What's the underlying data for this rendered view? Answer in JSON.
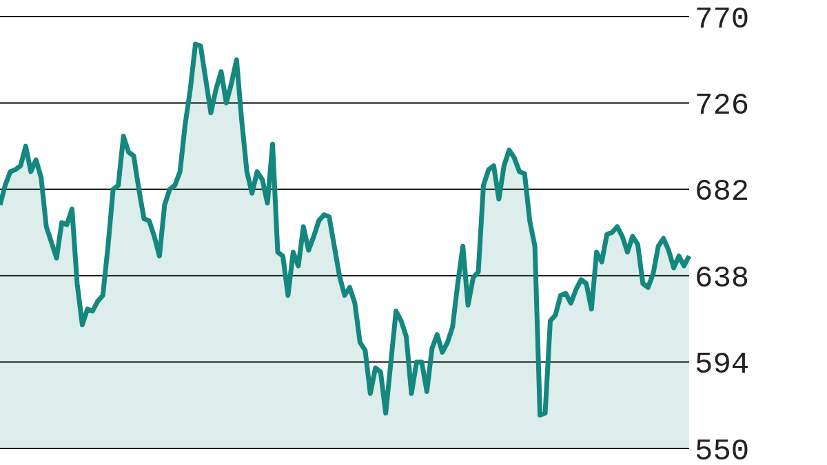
{
  "chart_data": {
    "type": "area",
    "categories": [
      null,
      null,
      null,
      null,
      null,
      null,
      null,
      null,
      null,
      null,
      null,
      null,
      null,
      null,
      null,
      null,
      null,
      null,
      null,
      null,
      null,
      null,
      null,
      null,
      null,
      null,
      null,
      null,
      null,
      null,
      null,
      null,
      null,
      null,
      null,
      null,
      null,
      null,
      null,
      null,
      null,
      null,
      null,
      null,
      null,
      null,
      null,
      null,
      null,
      null,
      null,
      null,
      null,
      null,
      null,
      null,
      null,
      null,
      null,
      null,
      null,
      null,
      null,
      null,
      null,
      null,
      null,
      null,
      null,
      null,
      null,
      null,
      null,
      null,
      null,
      null,
      null,
      null,
      null,
      null,
      null,
      null,
      null,
      null,
      null,
      null,
      null,
      null,
      null,
      null,
      null,
      null,
      null,
      null,
      null,
      null,
      null,
      null,
      null,
      null,
      null,
      null,
      null,
      null,
      null,
      null,
      null,
      null,
      null,
      null,
      null,
      null,
      null,
      null,
      null,
      null,
      null,
      null,
      null,
      null,
      null,
      null,
      null,
      null,
      null,
      null,
      null,
      null,
      null,
      null,
      null,
      null,
      null,
      null,
      null
    ],
    "values": [
      674,
      684,
      691,
      692,
      694,
      704,
      691,
      697,
      688,
      663,
      655,
      647,
      665,
      664,
      672,
      634,
      613,
      621,
      620,
      625,
      628,
      653,
      682,
      684,
      709,
      701,
      699,
      682,
      667,
      666,
      658,
      648,
      674,
      682,
      684,
      691,
      715,
      733,
      756,
      755,
      738,
      721,
      733,
      742,
      726,
      736,
      748,
      717,
      691,
      680,
      691,
      687,
      675,
      705,
      650,
      648,
      628,
      650,
      643,
      663,
      651,
      658,
      666,
      669,
      668,
      653,
      638,
      628,
      632,
      624,
      604,
      600,
      578,
      591,
      589,
      568,
      594,
      620,
      615,
      607,
      578,
      594,
      594,
      579,
      601,
      608,
      599,
      604,
      612,
      634,
      653,
      623,
      637,
      640,
      684,
      692,
      694,
      677,
      694,
      702,
      698,
      691,
      690,
      666,
      653,
      567,
      568,
      615,
      618,
      628,
      629,
      624,
      631,
      636,
      634,
      621,
      650,
      645,
      659,
      660,
      663,
      658,
      650,
      658,
      654,
      634,
      632,
      639,
      653,
      657,
      651,
      642,
      648,
      643,
      648
    ],
    "color": "#14877f",
    "ylim": [
      550,
      770
    ],
    "yticks": [
      550,
      594,
      638,
      682,
      726,
      770
    ],
    "grid": "y",
    "tick_labels": "y"
  }
}
